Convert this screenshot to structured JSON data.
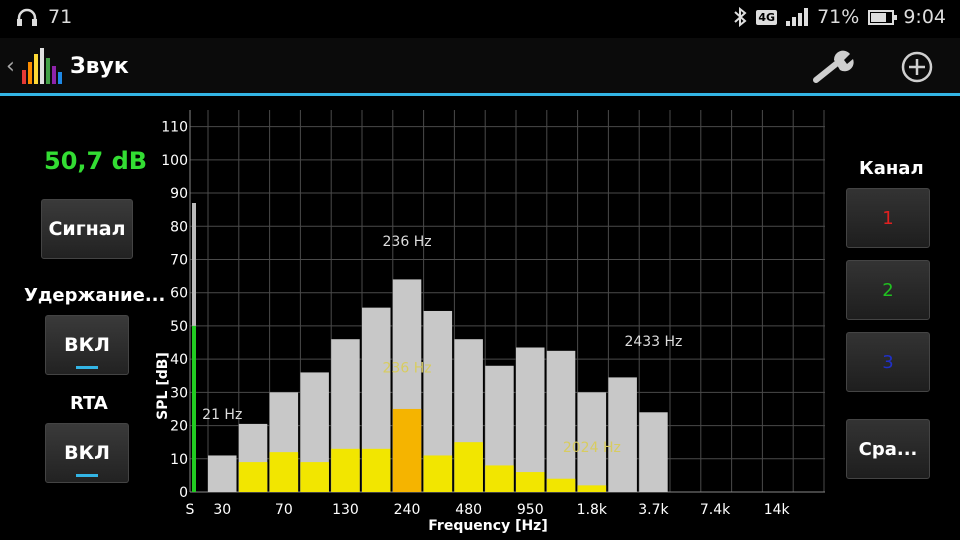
{
  "status": {
    "headphone_icon": "headphones-icon",
    "notify_count": "71",
    "network": "4G",
    "battery_percent": "71%",
    "battery_level": 0.71,
    "time": "9:04"
  },
  "actionbar": {
    "back_icon": "chevron-left-icon",
    "title": "Звук",
    "accent_color": "#33b5e5"
  },
  "left": {
    "level": "50,7 dB",
    "signal_button": "Сигнал",
    "hold_label": "Удержание...",
    "hold_button": "ВКЛ",
    "rta_label": "RTA",
    "rta_button": "ВКЛ"
  },
  "right": {
    "channel_label": "Канал",
    "ch1": "1",
    "ch2": "2",
    "ch3": "3",
    "compare_button": "Сра..."
  },
  "chart_data": {
    "type": "bar",
    "xlabel": "Frequency [Hz]",
    "ylabel": "SPL [dB]",
    "ylim": [
      0,
      115
    ],
    "yticks": [
      0,
      10,
      20,
      30,
      40,
      50,
      60,
      70,
      80,
      90,
      100,
      110
    ],
    "xtick_labels": [
      "S",
      "30",
      "70",
      "130",
      "240",
      "480",
      "950",
      "1.8k",
      "3.7k",
      "7.4k",
      "14k"
    ],
    "level_meter": {
      "peak": 87,
      "level": 50
    },
    "series": [
      {
        "values": [
          11,
          20.5,
          30,
          36,
          46,
          55.5,
          64,
          54.5,
          46,
          38,
          43.5,
          42.5,
          30,
          34.5,
          24
        ]
      },
      {
        "values": [
          0,
          9,
          12,
          9,
          13,
          13,
          25,
          11,
          15,
          8,
          6,
          4,
          2,
          0,
          0
        ]
      }
    ],
    "annotations": [
      {
        "text": "21 Hz",
        "x": "30",
        "y": 22
      },
      {
        "text": "236 Hz",
        "x": "240",
        "y": 74
      },
      {
        "text": "2433 Hz",
        "x": "3.7k",
        "y": 44
      },
      {
        "text": "236 Hz",
        "x": "240",
        "y": 36
      },
      {
        "text": "2024 Hz",
        "x": "1.8k",
        "y": 12
      }
    ],
    "colors": {
      "gray_bar": "#c8c8c8",
      "yellow_bar": "#f2e600",
      "peak_bar": "#f5b400",
      "grid": "#4a4a4a"
    }
  }
}
